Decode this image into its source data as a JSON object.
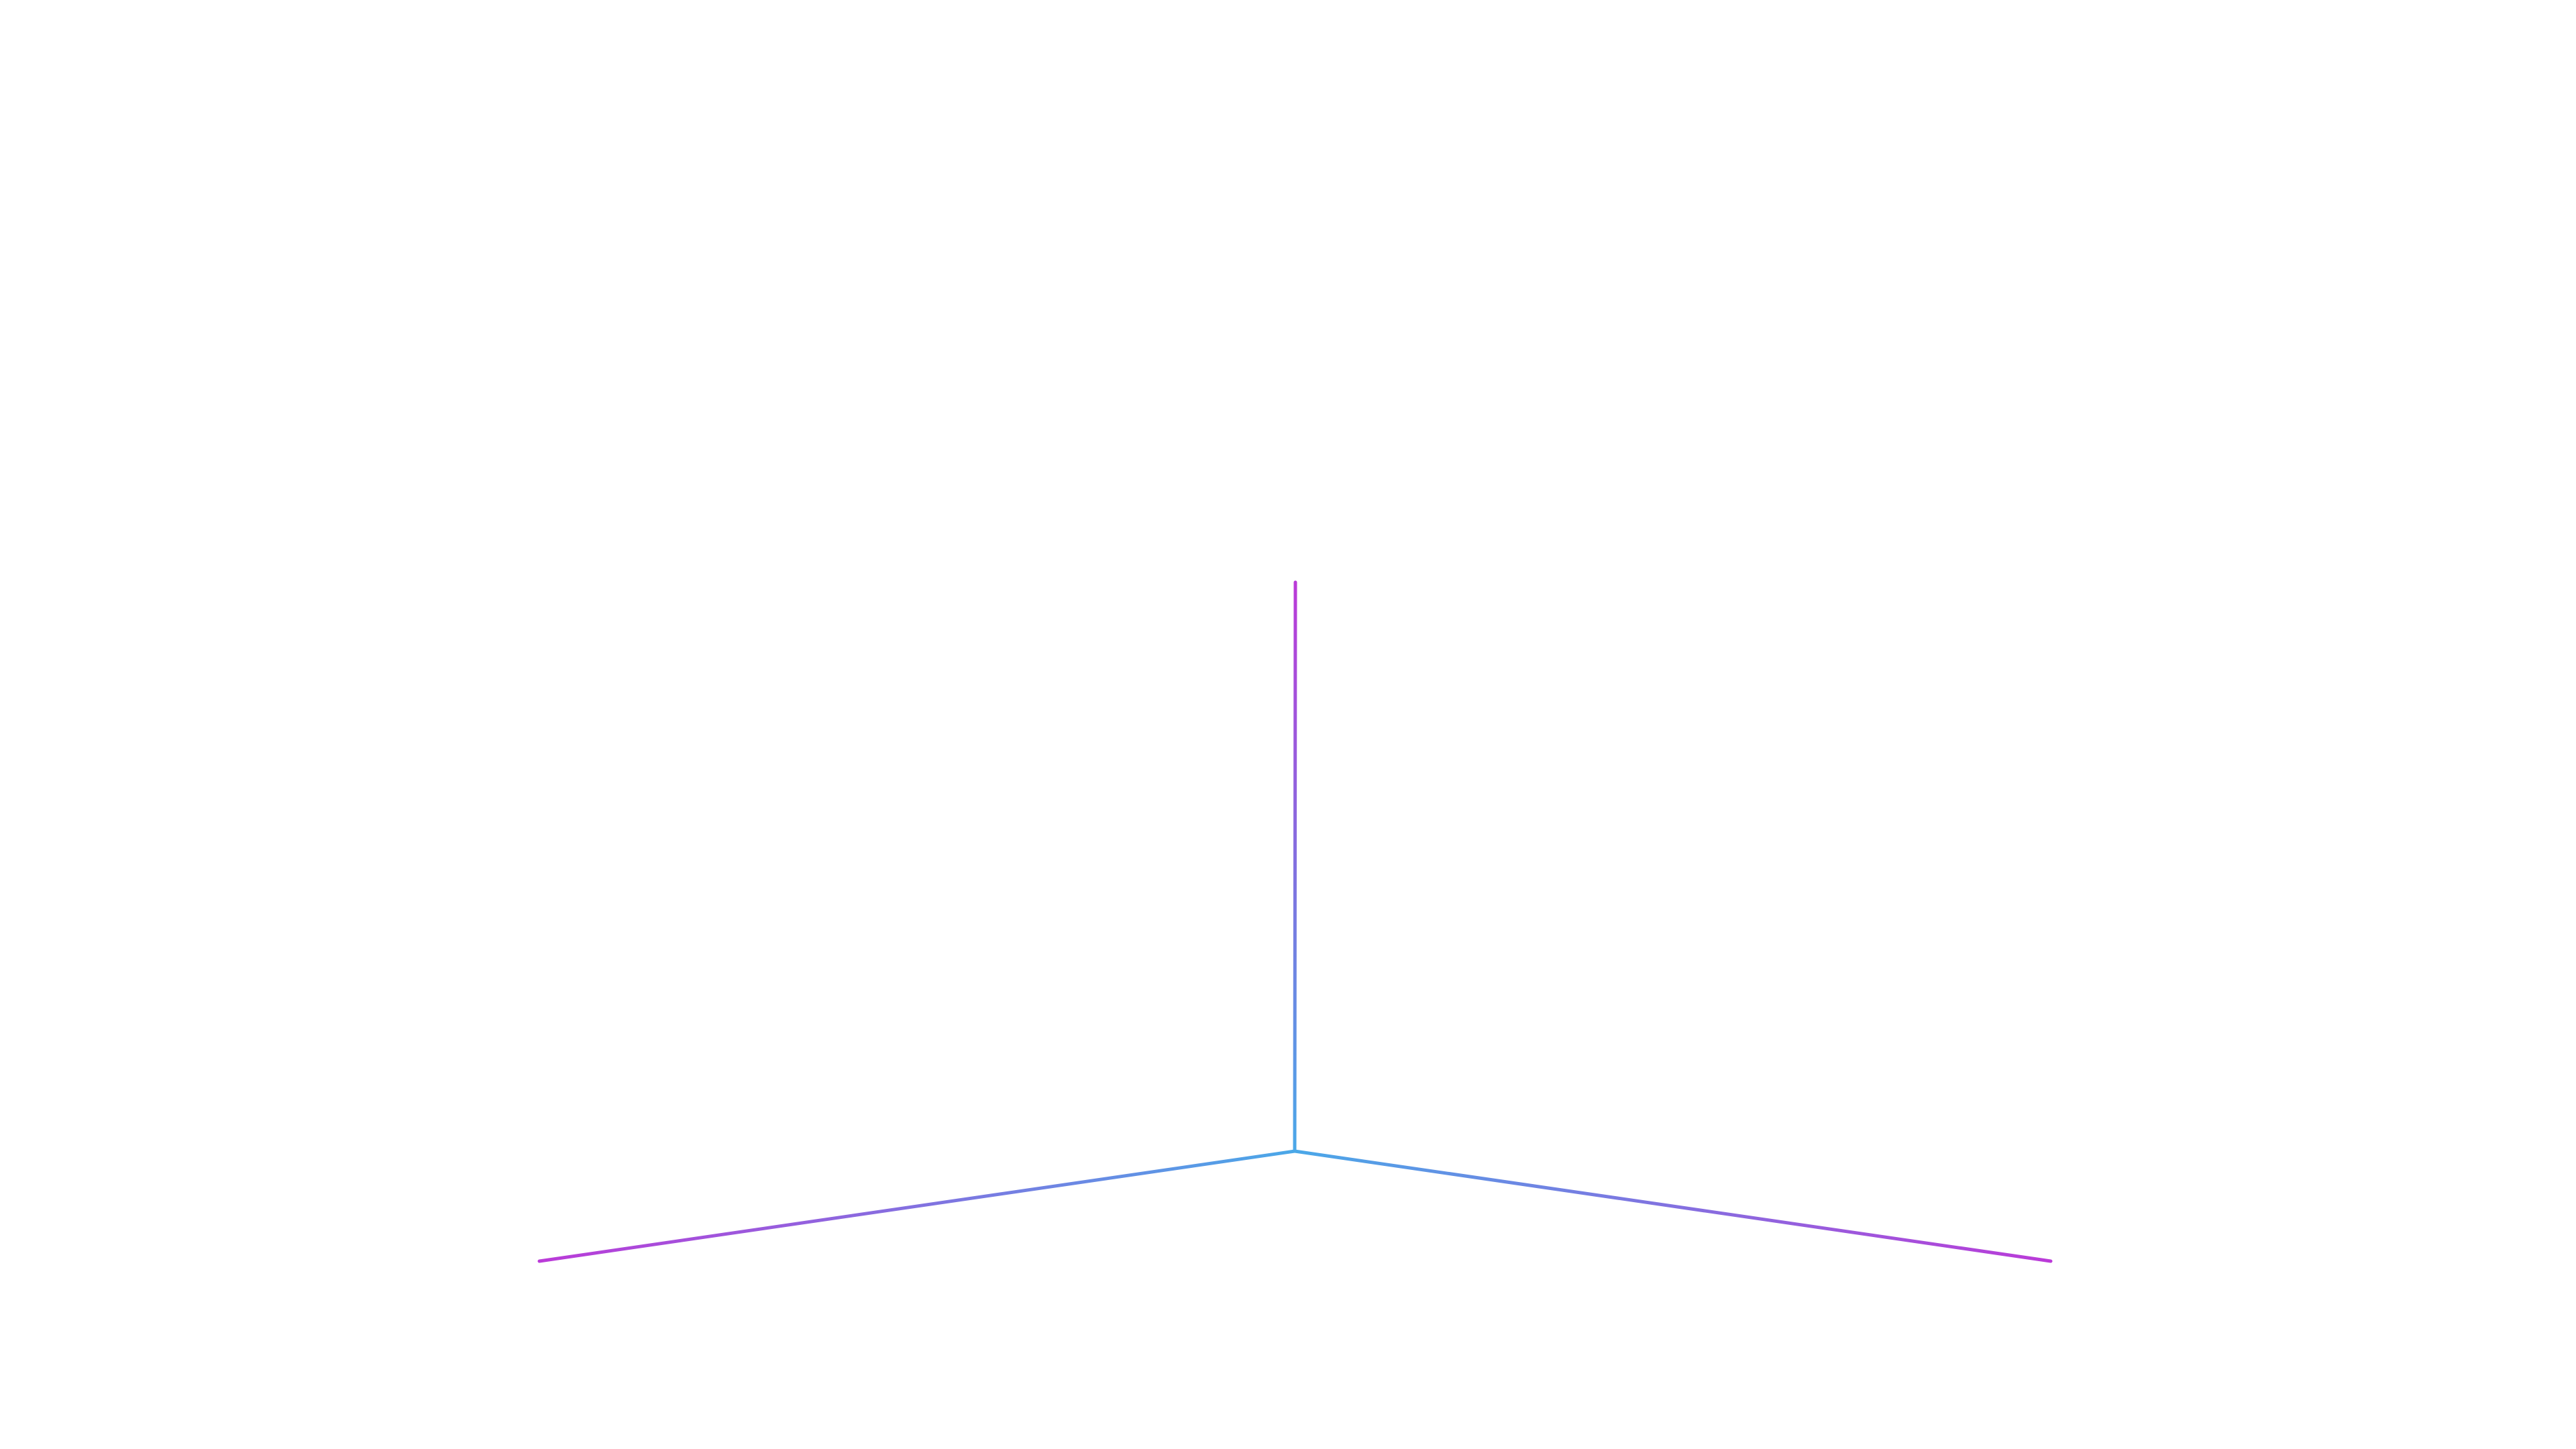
{
  "scene": {
    "background": "#ffffff",
    "colors": {
      "origin": "#4aa8e8",
      "tip": "#bb3ad8"
    },
    "axes": [
      {
        "id": "vertical-axis"
      },
      {
        "id": "left-axis"
      },
      {
        "id": "right-axis"
      }
    ]
  }
}
